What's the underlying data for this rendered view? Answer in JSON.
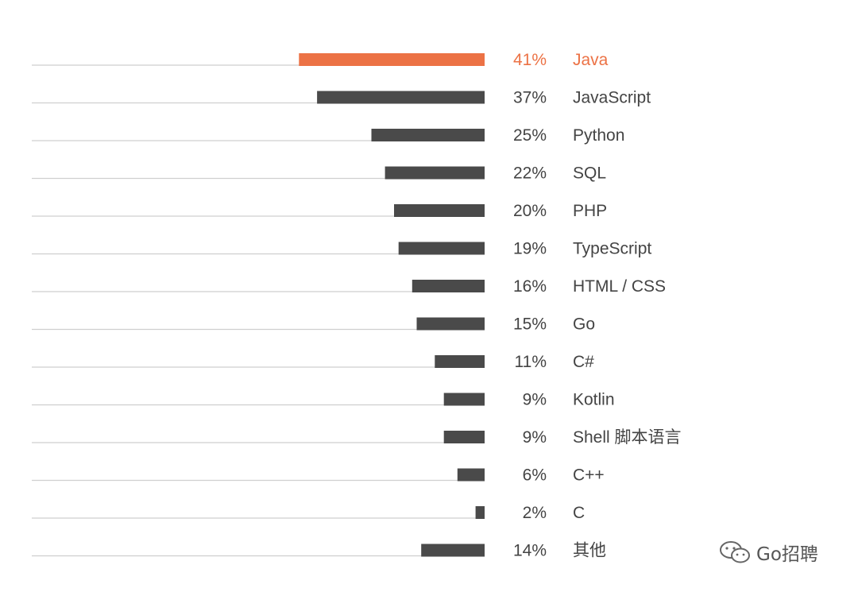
{
  "chart_data": {
    "type": "bar",
    "orientation": "horizontal",
    "categories": [
      "Java",
      "JavaScript",
      "Python",
      "SQL",
      "PHP",
      "TypeScript",
      "HTML / CSS",
      "Go",
      "C#",
      "Kotlin",
      "Shell 脚本语言",
      "C++",
      "C",
      "其他"
    ],
    "values": [
      41,
      37,
      25,
      22,
      20,
      19,
      16,
      15,
      11,
      9,
      9,
      6,
      2,
      14
    ],
    "value_labels": [
      "41%",
      "37%",
      "25%",
      "22%",
      "20%",
      "19%",
      "16%",
      "15%",
      "11%",
      "9%",
      "9%",
      "6%",
      "2%",
      "14%"
    ],
    "unit": "%",
    "highlight_index": 0,
    "colors": {
      "highlight": "#ec7245",
      "bar": "#4a4a4a",
      "baseline": "#cfcfcf",
      "text": "#444444"
    },
    "grid": false,
    "legend": "none"
  },
  "watermark": {
    "icon": "wechat-icon",
    "text": "Go招聘"
  }
}
